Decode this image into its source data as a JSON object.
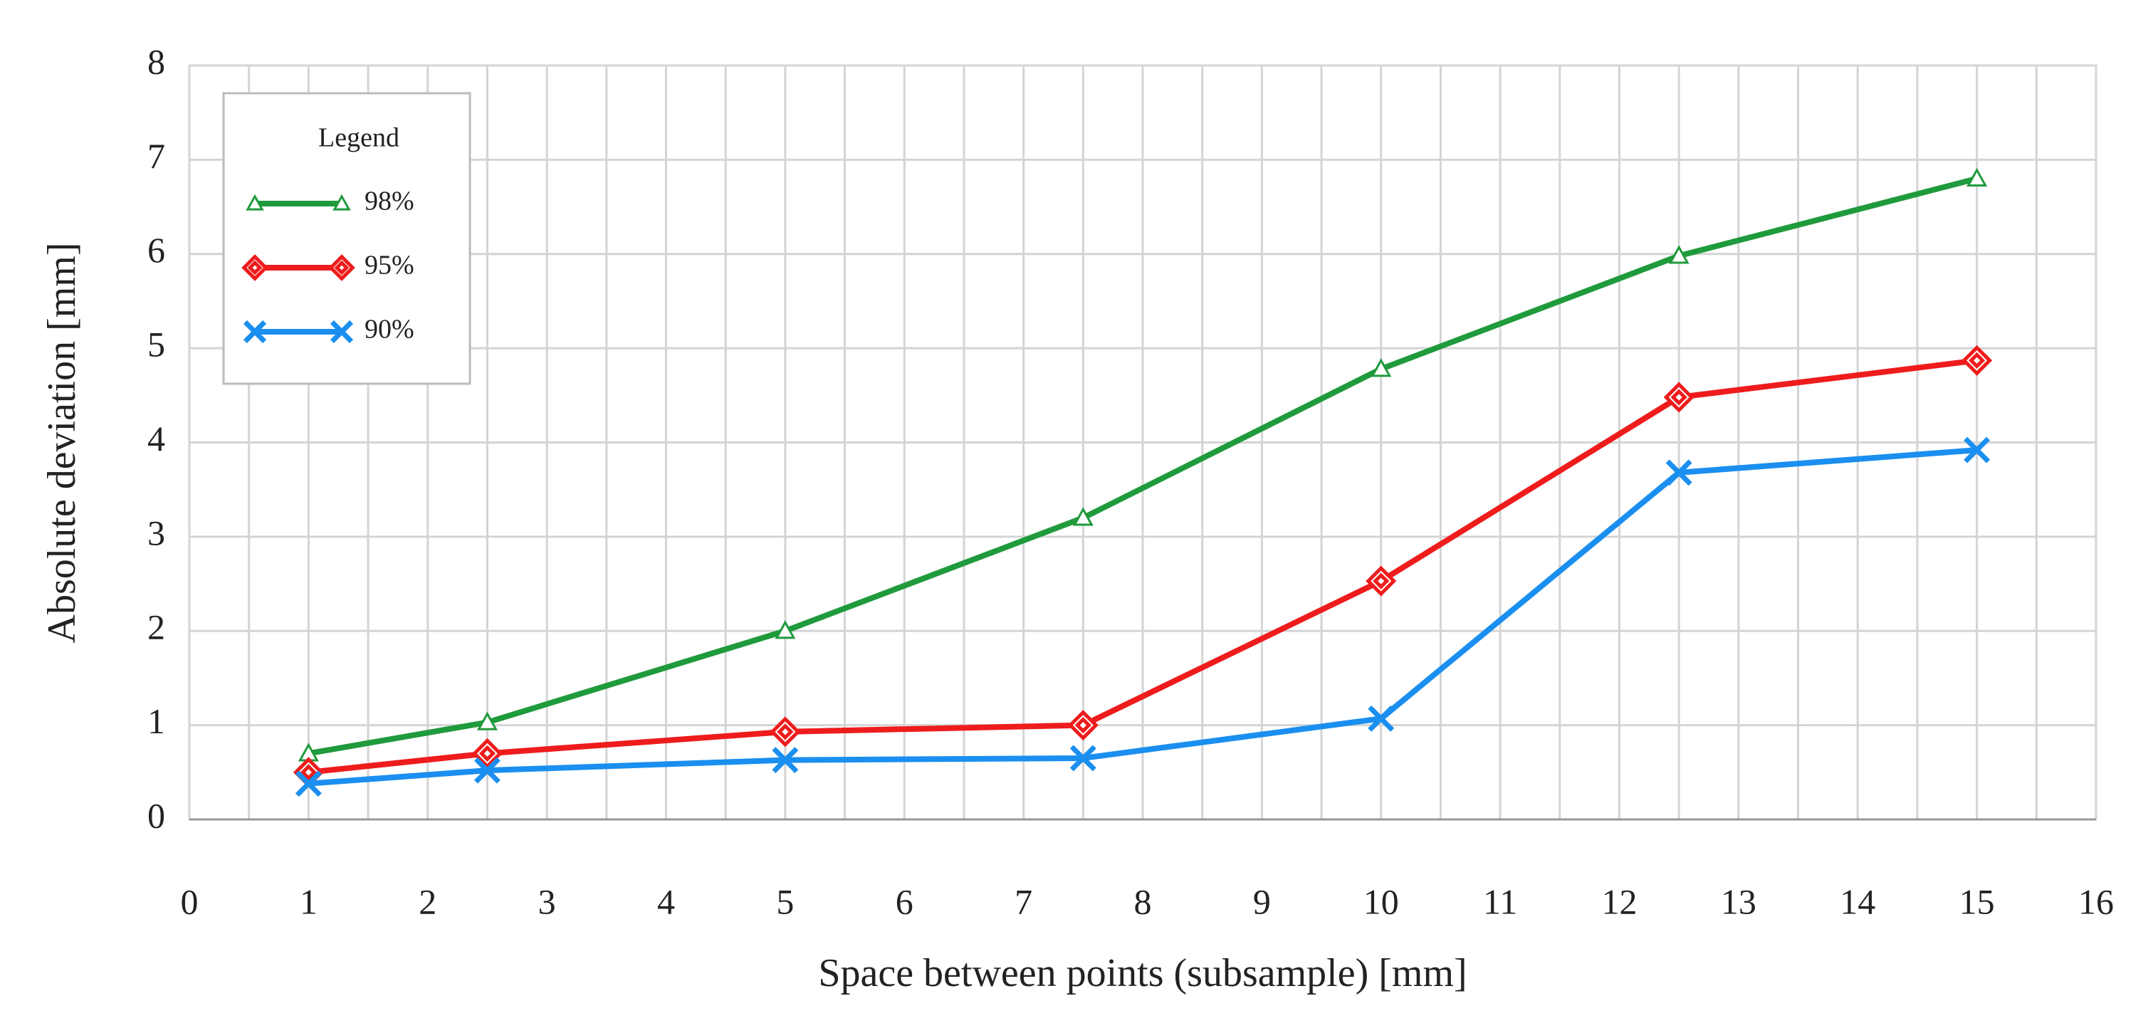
{
  "chart_data": {
    "type": "line",
    "x_label": "Space between points (subsample) [mm]",
    "y_label": "Absolute deviation [mm]",
    "legend_title": "Legend",
    "x": [
      1,
      2.5,
      5,
      7.5,
      10,
      12.5,
      15
    ],
    "series": [
      {
        "name": "98%",
        "color": "#1f9a3c",
        "marker": "triangle",
        "values": [
          0.7,
          1.03,
          2.0,
          3.2,
          4.78,
          5.98,
          6.8
        ]
      },
      {
        "name": "95%",
        "color": "#ee1c1c",
        "marker": "diamond",
        "values": [
          0.5,
          0.7,
          0.93,
          1.0,
          2.53,
          4.48,
          4.87
        ]
      },
      {
        "name": "90%",
        "color": "#1a8ff0",
        "marker": "x",
        "values": [
          0.38,
          0.52,
          0.63,
          0.65,
          1.07,
          3.68,
          3.92
        ]
      }
    ],
    "xlim": [
      0,
      16
    ],
    "xticks": [
      0,
      1,
      2,
      3,
      4,
      5,
      6,
      7,
      8,
      9,
      10,
      11,
      12,
      13,
      14,
      15,
      16
    ],
    "ylim": [
      0,
      8
    ],
    "yticks": [
      0,
      1,
      2,
      3,
      4,
      5,
      6,
      7,
      8
    ],
    "grid": true,
    "legend": "upper left"
  }
}
